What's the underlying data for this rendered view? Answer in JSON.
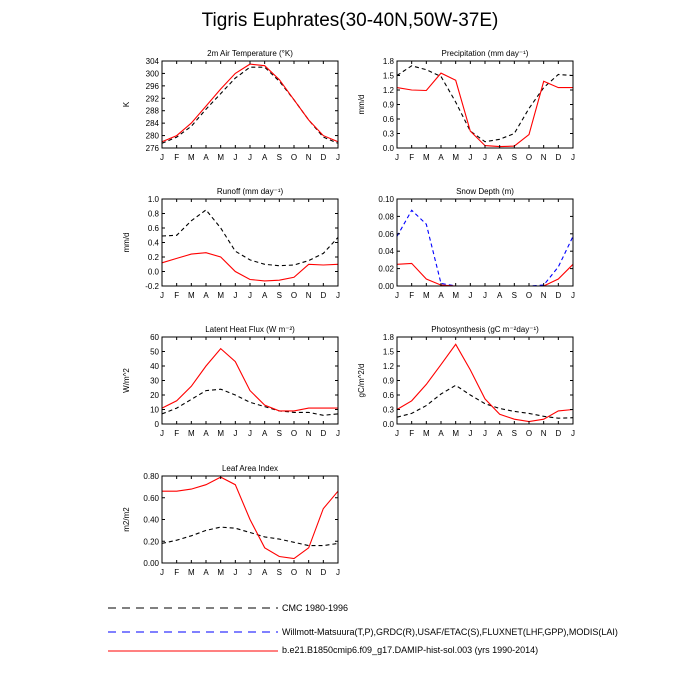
{
  "page": {
    "title": "Tigris Euphrates(30-40N,50W-37E)"
  },
  "colors": {
    "cmc": "#000000",
    "obs": "#0000ff",
    "model": "#ff0000"
  },
  "legend": [
    {
      "label": "CMC 1980-1996",
      "color": "#000000",
      "style": "dashed"
    },
    {
      "label": "Willmott-Matsuura(T,P),GRDC(R),USAF/ETAC(S),FLUXNET(LHF,GPP),MODIS(LAI)",
      "color": "#0000ff",
      "style": "dashed"
    },
    {
      "label": "b.e21.B1850cmip6.f09_g17.DAMIP-hist-sol.003 (yrs 1990-2014)",
      "color": "#ff0000",
      "style": "solid"
    }
  ],
  "chart_data": [
    {
      "type": "line",
      "title": "2m Air Temperature (°K)",
      "ylabel": "K",
      "categories": [
        "J",
        "F",
        "M",
        "A",
        "M",
        "J",
        "J",
        "A",
        "S",
        "O",
        "N",
        "D",
        "J"
      ],
      "ylim": [
        276,
        304
      ],
      "yticks": [
        "276",
        "280",
        "284",
        "288",
        "292",
        "296",
        "300",
        "304"
      ],
      "ytick_values": [
        276,
        280,
        284,
        288,
        292,
        296,
        300,
        304
      ],
      "series": [
        {
          "style": "cmc",
          "values": [
            277.5,
            279.5,
            283.0,
            288.5,
            293.5,
            298.5,
            302.0,
            302.0,
            297.5,
            291.5,
            285.0,
            279.5,
            277.5
          ]
        },
        {
          "style": "model",
          "values": [
            278.0,
            280.0,
            284.0,
            289.5,
            295.0,
            300.0,
            303.0,
            302.5,
            298.0,
            291.5,
            285.0,
            280.0,
            278.0
          ]
        }
      ]
    },
    {
      "type": "line",
      "title": "Precipitation (mm day⁻¹)",
      "ylabel": "mm/d",
      "categories": [
        "J",
        "F",
        "M",
        "A",
        "M",
        "J",
        "J",
        "A",
        "S",
        "O",
        "N",
        "D",
        "J"
      ],
      "ylim": [
        0,
        1.8
      ],
      "yticks": [
        "0.0",
        "0.3",
        "0.6",
        "0.9",
        "1.2",
        "1.5",
        "1.8"
      ],
      "ytick_values": [
        0,
        0.3,
        0.6,
        0.9,
        1.2,
        1.5,
        1.8
      ],
      "series": [
        {
          "style": "cmc",
          "values": [
            1.5,
            1.7,
            1.62,
            1.48,
            0.95,
            0.35,
            0.13,
            0.18,
            0.3,
            0.82,
            1.25,
            1.52,
            1.5
          ]
        },
        {
          "style": "model",
          "values": [
            1.25,
            1.2,
            1.19,
            1.55,
            1.4,
            0.35,
            0.05,
            0.03,
            0.04,
            0.28,
            1.38,
            1.25,
            1.25
          ]
        }
      ]
    },
    {
      "type": "line",
      "title": "Runoff (mm day⁻¹)",
      "ylabel": "mm/d",
      "categories": [
        "J",
        "F",
        "M",
        "A",
        "M",
        "J",
        "J",
        "A",
        "S",
        "O",
        "N",
        "D",
        "J"
      ],
      "ylim": [
        -0.2,
        1.0
      ],
      "yticks": [
        "-0.2",
        "0.0",
        "0.2",
        "0.4",
        "0.6",
        "0.8",
        "1.0"
      ],
      "ytick_values": [
        -0.2,
        0,
        0.2,
        0.4,
        0.6,
        0.8,
        1.0
      ],
      "series": [
        {
          "style": "cmc",
          "values": [
            0.49,
            0.5,
            0.7,
            0.85,
            0.6,
            0.28,
            0.16,
            0.1,
            0.08,
            0.09,
            0.15,
            0.25,
            0.47
          ]
        },
        {
          "style": "model",
          "values": [
            0.12,
            0.18,
            0.24,
            0.26,
            0.2,
            0.0,
            -0.11,
            -0.13,
            -0.12,
            -0.08,
            0.1,
            0.09,
            0.1
          ]
        }
      ]
    },
    {
      "type": "line",
      "title": "Snow Depth (m)",
      "ylabel": "",
      "categories": [
        "J",
        "F",
        "M",
        "A",
        "M",
        "J",
        "J",
        "A",
        "S",
        "O",
        "N",
        "D",
        "J"
      ],
      "ylim": [
        0,
        0.1
      ],
      "yticks": [
        "0.00",
        "0.02",
        "0.04",
        "0.06",
        "0.08",
        "0.10"
      ],
      "ytick_values": [
        0,
        0.02,
        0.04,
        0.06,
        0.08,
        0.1
      ],
      "series": [
        {
          "style": "obs",
          "values": [
            0.057,
            0.087,
            0.071,
            0.003,
            0,
            0,
            0,
            0,
            0,
            0,
            0.001,
            0.022,
            0.057
          ]
        },
        {
          "style": "model",
          "values": [
            0.025,
            0.026,
            0.008,
            0.001,
            0,
            0,
            0,
            0,
            0,
            0,
            0,
            0.008,
            0.025
          ]
        }
      ]
    },
    {
      "type": "line",
      "title": "Latent Heat Flux (W m⁻²)",
      "ylabel": "W/m^2",
      "categories": [
        "J",
        "F",
        "M",
        "A",
        "M",
        "J",
        "J",
        "A",
        "S",
        "O",
        "N",
        "D",
        "J"
      ],
      "ylim": [
        0,
        60
      ],
      "yticks": [
        "0",
        "10",
        "20",
        "30",
        "40",
        "50",
        "60"
      ],
      "ytick_values": [
        0,
        10,
        20,
        30,
        40,
        50,
        60
      ],
      "series": [
        {
          "style": "cmc",
          "values": [
            7,
            11,
            17,
            23,
            24,
            20,
            15,
            12,
            9,
            8,
            8,
            6,
            7
          ]
        },
        {
          "style": "model",
          "values": [
            11,
            16,
            26,
            40,
            52,
            43,
            23,
            13,
            9,
            9,
            11,
            11,
            11
          ]
        }
      ]
    },
    {
      "type": "line",
      "title": "Photosynthesis (gC m⁻²day⁻¹)",
      "ylabel": "gC/m^2/d",
      "categories": [
        "J",
        "F",
        "M",
        "A",
        "M",
        "J",
        "J",
        "A",
        "S",
        "O",
        "N",
        "D",
        "J"
      ],
      "ylim": [
        0,
        1.8
      ],
      "yticks": [
        "0.0",
        "0.3",
        "0.6",
        "0.9",
        "1.2",
        "1.5",
        "1.8"
      ],
      "ytick_values": [
        0,
        0.3,
        0.6,
        0.9,
        1.2,
        1.5,
        1.8
      ],
      "series": [
        {
          "style": "cmc",
          "values": [
            0.14,
            0.22,
            0.38,
            0.62,
            0.8,
            0.6,
            0.42,
            0.32,
            0.26,
            0.22,
            0.16,
            0.12,
            0.13
          ]
        },
        {
          "style": "model",
          "values": [
            0.3,
            0.48,
            0.82,
            1.23,
            1.65,
            1.12,
            0.52,
            0.2,
            0.1,
            0.05,
            0.1,
            0.27,
            0.3
          ]
        }
      ]
    },
    {
      "type": "line",
      "title": "Leaf Area Index",
      "ylabel": "m2/m2",
      "categories": [
        "J",
        "F",
        "M",
        "A",
        "M",
        "J",
        "J",
        "A",
        "S",
        "O",
        "N",
        "D",
        "J"
      ],
      "ylim": [
        0,
        0.8
      ],
      "yticks": [
        "0.00",
        "0.20",
        "0.40",
        "0.60",
        "0.80"
      ],
      "ytick_values": [
        0,
        0.2,
        0.4,
        0.6,
        0.8
      ],
      "series": [
        {
          "style": "cmc",
          "values": [
            0.18,
            0.21,
            0.25,
            0.3,
            0.33,
            0.32,
            0.28,
            0.24,
            0.22,
            0.19,
            0.16,
            0.16,
            0.18
          ]
        },
        {
          "style": "model",
          "values": [
            0.66,
            0.66,
            0.68,
            0.72,
            0.79,
            0.72,
            0.4,
            0.14,
            0.06,
            0.04,
            0.14,
            0.5,
            0.66
          ]
        }
      ]
    }
  ]
}
